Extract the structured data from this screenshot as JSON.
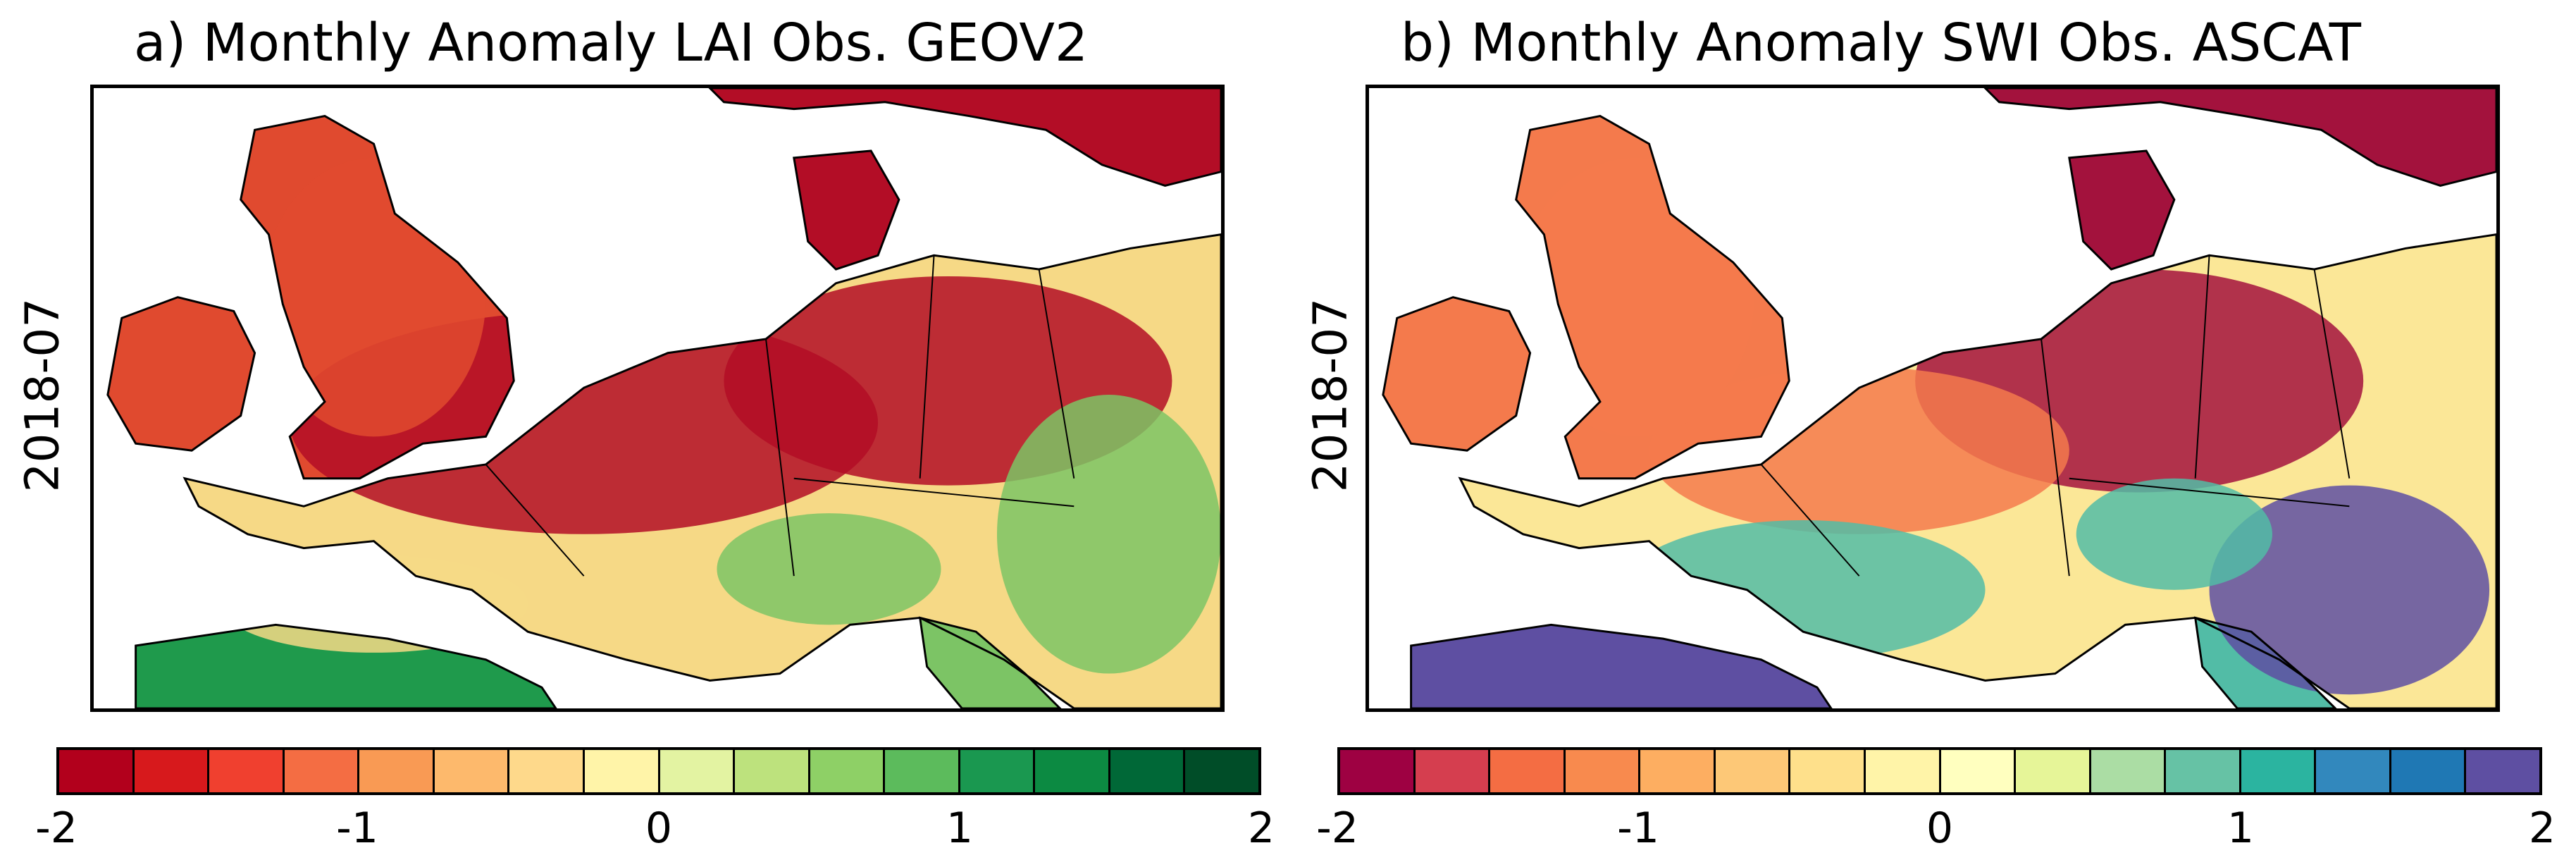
{
  "panels": [
    {
      "title": "a) Monthly Anomaly LAI Obs. GEOV2",
      "row_label": "2018-07",
      "colorbar": {
        "ticks": [
          "-2",
          "-1",
          "0",
          "1",
          "2"
        ],
        "colors": [
          "#b2001c",
          "#d7191c",
          "#f0402f",
          "#f46d43",
          "#f99a54",
          "#fdb96c",
          "#fed98b",
          "#fff4a8",
          "#e3f3a2",
          "#bde27d",
          "#8ed066",
          "#5cbb5c",
          "#1a9850",
          "#0c8a42",
          "#006837",
          "#004d28"
        ]
      },
      "palette": {
        "ocean": "#ffffff",
        "land_dry": "#b30d26",
        "land_mid": "#e04a2f",
        "land_neutral": "#f6d986",
        "land_wet": "#7cc465",
        "land_verywet": "#1f9a4c",
        "border": "#000000"
      }
    },
    {
      "title": "b)    Monthly Anomaly SWI Obs. ASCAT",
      "row_label": "2018-07",
      "colorbar": {
        "ticks": [
          "-2",
          "-1",
          "0",
          "1",
          "2"
        ],
        "colors": [
          "#9e0142",
          "#d53e4f",
          "#f46d43",
          "#f88a4e",
          "#fdae61",
          "#fdc877",
          "#fee08b",
          "#fff4a8",
          "#ffffbf",
          "#e6f598",
          "#abdda4",
          "#66c2a5",
          "#2bb4a0",
          "#3288bd",
          "#1f78b4",
          "#5e4fa2"
        ]
      },
      "palette": {
        "ocean": "#ffffff",
        "land_dry": "#a3123d",
        "land_mid": "#f47a4c",
        "land_neutral": "#fbe797",
        "land_wet": "#52bca6",
        "land_verywet": "#5e4fa2",
        "border": "#000000"
      }
    }
  ]
}
